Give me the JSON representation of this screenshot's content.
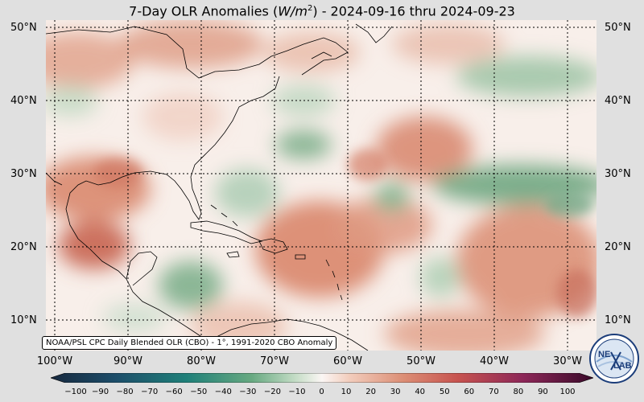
{
  "title": {
    "prefix": "7-Day OLR Anomalies (",
    "unit_base": "W/m",
    "unit_exp": "2",
    "suffix": ") - 2024-09-16 thru 2024-09-23"
  },
  "lat_labels": [
    "50°N",
    "40°N",
    "30°N",
    "20°N",
    "10°N"
  ],
  "lon_labels": [
    "100°W",
    "90°W",
    "80°W",
    "70°W",
    "60°W",
    "50°W",
    "40°W",
    "30°W"
  ],
  "source_text": "NOAA/PSL CPC Daily Blended OLR (CBO) - 1°, 1991-2020 CBO Anomaly",
  "colorbar": {
    "ticks": [
      "−100",
      "−90",
      "−80",
      "−70",
      "−60",
      "−50",
      "−40",
      "−30",
      "−20",
      "−10",
      "0",
      "10",
      "20",
      "30",
      "40",
      "50",
      "60",
      "70",
      "80",
      "90",
      "100"
    ],
    "range": [
      -100,
      100
    ],
    "negative_color_end": "#17293f",
    "positive_color_end": "#3a0a2a"
  },
  "logo": {
    "text_top": "NE",
    "text_bottom": "LAB"
  },
  "colors": {
    "background": "#e0e0e0",
    "ocean_neutral": "#f8efea",
    "warm_anomaly": "#d9886f",
    "cool_anomaly": "#76ab87"
  }
}
